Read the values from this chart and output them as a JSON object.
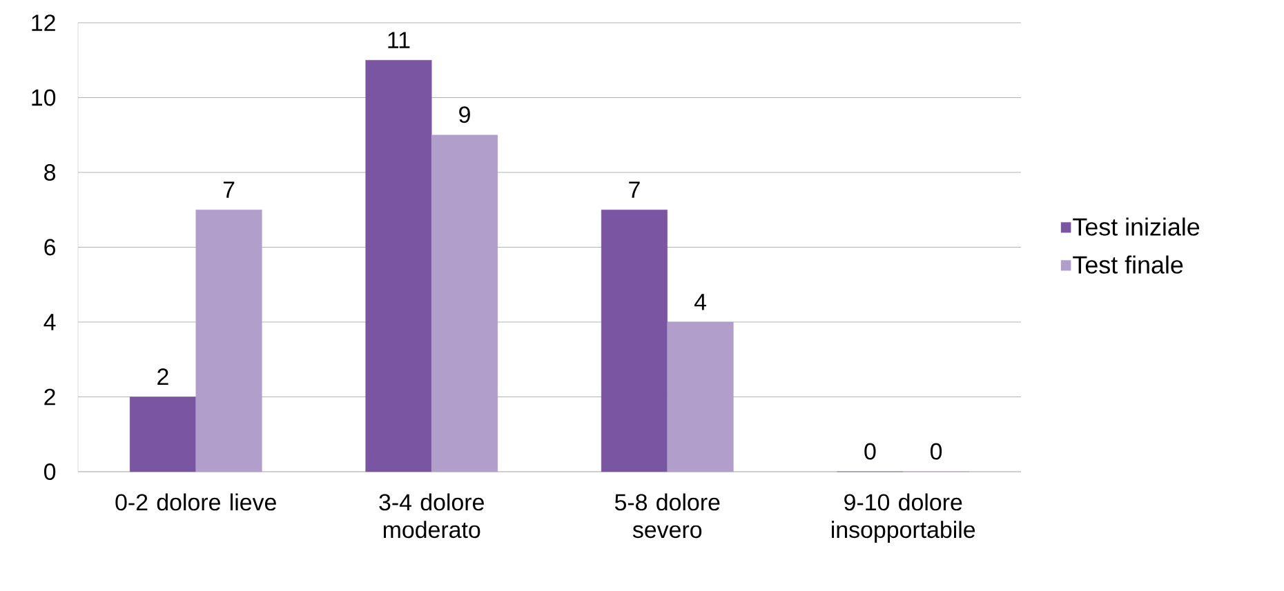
{
  "chart_data": {
    "type": "bar",
    "categories": [
      "0-2 dolore lieve",
      "3-4 dolore moderato",
      "5-8 dolore severo",
      "9-10 dolore insopportabile"
    ],
    "series": [
      {
        "name": "Test iniziale",
        "color": "#7a55a2",
        "values": [
          2,
          11,
          7,
          0
        ]
      },
      {
        "name": "Test finale",
        "color": "#b19ecb",
        "values": [
          7,
          9,
          4,
          0
        ]
      }
    ],
    "ylim": [
      0,
      12
    ],
    "yticks": [
      0,
      2,
      4,
      6,
      8,
      10,
      12
    ],
    "grid": "y",
    "legend": "right",
    "data_labels": true
  }
}
